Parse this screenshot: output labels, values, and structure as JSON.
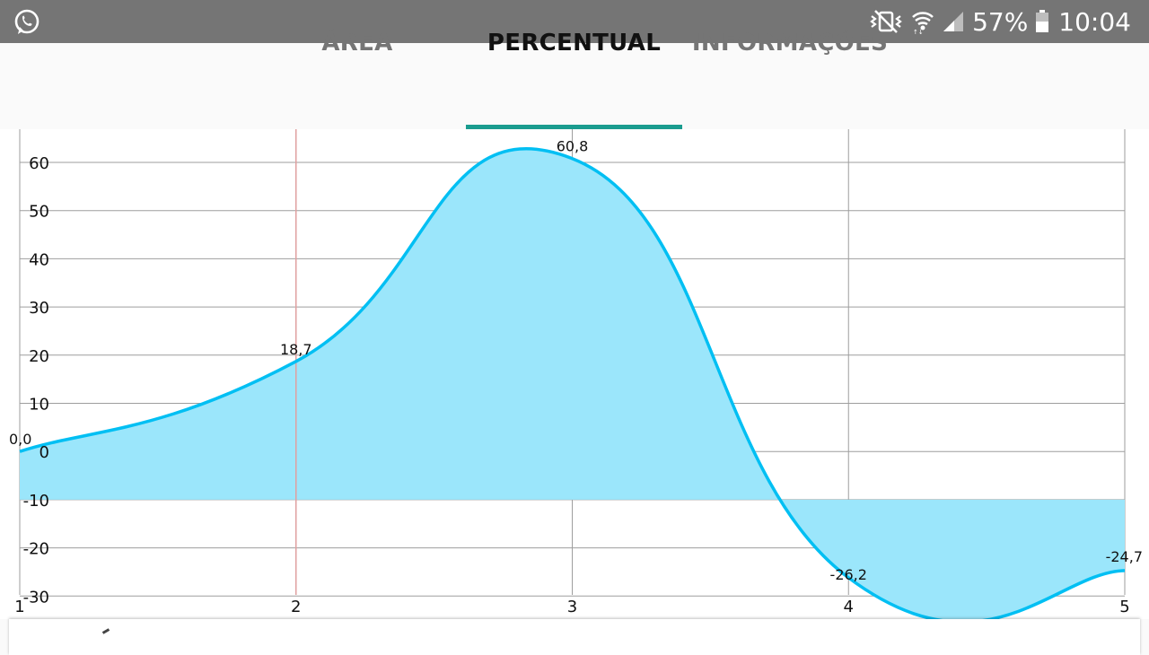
{
  "status_bar": {
    "app_icon": "whatsapp-icon",
    "mute_icon": "vibrate-mute-icon",
    "wifi_icon": "wifi-icon",
    "signal_icon": "signal-icon",
    "battery_icon": "battery-icon",
    "battery_percent": "57%",
    "time": "10:04"
  },
  "tabs": [
    {
      "label": "ÁREA",
      "active": false
    },
    {
      "label": "PERCENTUAL",
      "active": true
    },
    {
      "label": "INFORMAÇÕES",
      "active": false
    }
  ],
  "colors": {
    "status_bar_bg": "#757575",
    "tab_indicator": "#1a9c8f",
    "line": "#00bff3",
    "fill": "#9be6fb",
    "grid": "#9e9e9e",
    "highlight_line": "#e0a0a0"
  },
  "chart_data": {
    "type": "area",
    "title": "",
    "xlabel": "",
    "ylabel": "",
    "x": [
      1,
      2,
      3,
      4,
      5
    ],
    "values": [
      0.0,
      18.7,
      60.8,
      -26.2,
      -24.7
    ],
    "value_labels": [
      "0,0",
      "18,7",
      "60,8",
      "-26,2",
      "-24,7"
    ],
    "x_tick_labels": [
      "1",
      "2",
      "3",
      "4",
      "5"
    ],
    "y_tick_values": [
      60,
      50,
      40,
      30,
      20,
      10,
      0,
      -10,
      -20,
      -30
    ],
    "y_tick_labels": [
      "60",
      "50",
      "40",
      "30",
      "20",
      "10",
      "0",
      "-10",
      "-20",
      "-30"
    ],
    "fill_baseline": -10,
    "highlight_x": 2,
    "grid": true,
    "legend": "none"
  }
}
